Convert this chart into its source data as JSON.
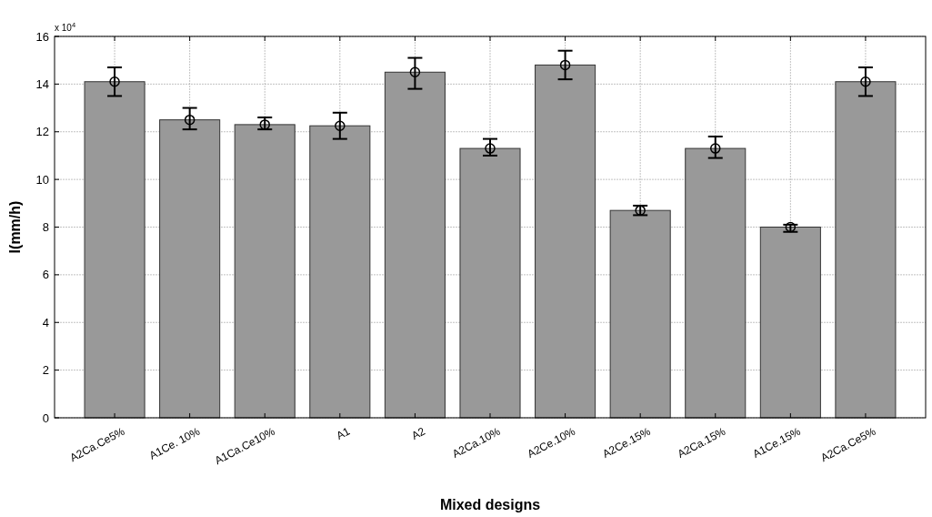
{
  "chart_data": {
    "type": "bar",
    "xlabel": "Mixed designs",
    "ylabel": "I(mm/h)",
    "annotations": [
      "x 10$^{4}$"
    ],
    "categories": [
      "A2Ca.Ce5%",
      "A1Ce. 10%",
      "A1Ca.Ce10%",
      "A1",
      "A2",
      "A2Ca.10%",
      "A2Ce.10%",
      "A2Ce.15%",
      "A2Ca.15%",
      "A1Ce.15%",
      "A2Ca.Ce5%"
    ],
    "series": [
      {
        "color": "#999999",
        "values": [
          14.1,
          12.5,
          12.3,
          12.25,
          14.5,
          11.3,
          14.8,
          8.7,
          11.3,
          8.0,
          14.1
        ],
        "errors": [
          [
            13.5,
            14.7
          ],
          [
            12.1,
            13.0
          ],
          [
            12.1,
            12.6
          ],
          [
            11.7,
            12.8
          ],
          [
            13.8,
            15.1
          ],
          [
            11.0,
            11.7
          ],
          [
            14.2,
            15.4
          ],
          [
            8.5,
            8.9
          ],
          [
            10.9,
            11.8
          ],
          [
            7.8,
            8.1
          ],
          [
            13.5,
            14.7
          ]
        ]
      },
      {
        "type": "scatter",
        "color": "#000000",
        "marker": "circle",
        "values": [
          14.1,
          12.5,
          12.3,
          12.25,
          14.5,
          11.3,
          14.8,
          8.7,
          11.3,
          8.0,
          14.1
        ]
      }
    ],
    "ylim": [
      0,
      16
    ],
    "yticks": [
      0,
      2,
      4,
      6,
      8,
      10,
      12,
      14,
      16
    ],
    "grid": true
  }
}
